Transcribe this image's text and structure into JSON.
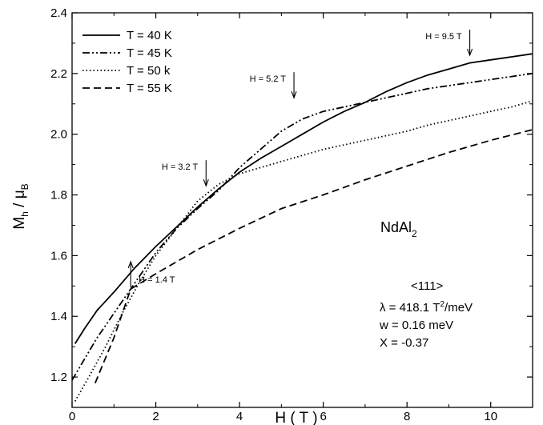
{
  "chart_data": {
    "type": "line",
    "xlabel": "H ( T )",
    "ylabel_main": "M",
    "ylabel_sub1": "h",
    "ylabel_mid": " / μ",
    "ylabel_sub2": "B",
    "xlim": [
      0,
      11
    ],
    "ylim": [
      1.1,
      2.4
    ],
    "x_ticks": [
      0,
      2,
      4,
      6,
      8,
      10
    ],
    "x_tick_labels": [
      "0",
      "2",
      "4",
      "6",
      "8",
      "10"
    ],
    "y_ticks": [
      1.2,
      1.4,
      1.6,
      1.8,
      2.0,
      2.2,
      2.4
    ],
    "y_tick_labels": [
      "1.2",
      "1.4",
      "1.6",
      "1.8",
      "2.0",
      "2.2",
      "2.4"
    ],
    "grid": false,
    "legend_position": "top-left",
    "series": [
      {
        "name": "T = 40 K",
        "dash": "solid",
        "points": [
          [
            0.07,
            1.31
          ],
          [
            0.3,
            1.36
          ],
          [
            0.6,
            1.42
          ],
          [
            1.0,
            1.48
          ],
          [
            1.5,
            1.56
          ],
          [
            2.0,
            1.63
          ],
          [
            2.5,
            1.695
          ],
          [
            3.0,
            1.76
          ],
          [
            3.5,
            1.82
          ],
          [
            4.0,
            1.875
          ],
          [
            4.5,
            1.92
          ],
          [
            5.0,
            1.96
          ],
          [
            5.5,
            2.0
          ],
          [
            6.0,
            2.04
          ],
          [
            6.5,
            2.075
          ],
          [
            7.0,
            2.105
          ],
          [
            7.5,
            2.14
          ],
          [
            8.0,
            2.17
          ],
          [
            8.5,
            2.195
          ],
          [
            9.0,
            2.215
          ],
          [
            9.5,
            2.235
          ],
          [
            10.0,
            2.245
          ],
          [
            10.5,
            2.255
          ],
          [
            11.0,
            2.265
          ]
        ]
      },
      {
        "name": "T = 45 K",
        "dash": "dash-dot",
        "points": [
          [
            0.0,
            1.19
          ],
          [
            0.3,
            1.26
          ],
          [
            0.6,
            1.33
          ],
          [
            1.0,
            1.41
          ],
          [
            1.5,
            1.51
          ],
          [
            2.0,
            1.61
          ],
          [
            2.5,
            1.69
          ],
          [
            3.0,
            1.755
          ],
          [
            3.5,
            1.815
          ],
          [
            4.0,
            1.89
          ],
          [
            4.5,
            1.95
          ],
          [
            5.0,
            2.01
          ],
          [
            5.5,
            2.05
          ],
          [
            6.0,
            2.075
          ],
          [
            6.5,
            2.09
          ],
          [
            7.0,
            2.105
          ],
          [
            7.5,
            2.12
          ],
          [
            8.0,
            2.135
          ],
          [
            8.5,
            2.15
          ],
          [
            9.0,
            2.16
          ],
          [
            9.5,
            2.17
          ],
          [
            10.0,
            2.18
          ],
          [
            10.5,
            2.19
          ],
          [
            11.0,
            2.2
          ]
        ]
      },
      {
        "name": "T = 50 k",
        "dash": "dotted",
        "points": [
          [
            0.07,
            1.12
          ],
          [
            0.4,
            1.2
          ],
          [
            0.8,
            1.3
          ],
          [
            1.2,
            1.41
          ],
          [
            1.6,
            1.51
          ],
          [
            2.0,
            1.6
          ],
          [
            2.5,
            1.69
          ],
          [
            3.0,
            1.78
          ],
          [
            3.5,
            1.835
          ],
          [
            4.0,
            1.87
          ],
          [
            4.5,
            1.89
          ],
          [
            5.0,
            1.91
          ],
          [
            5.5,
            1.93
          ],
          [
            6.0,
            1.95
          ],
          [
            6.5,
            1.965
          ],
          [
            7.0,
            1.98
          ],
          [
            7.5,
            1.995
          ],
          [
            8.0,
            2.01
          ],
          [
            8.5,
            2.03
          ],
          [
            9.0,
            2.045
          ],
          [
            9.5,
            2.06
          ],
          [
            10.0,
            2.075
          ],
          [
            10.5,
            2.09
          ],
          [
            11.0,
            2.11
          ]
        ]
      },
      {
        "name": "T = 55 K",
        "dash": "dashed",
        "points": [
          [
            0.55,
            1.18
          ],
          [
            1.0,
            1.33
          ],
          [
            1.4,
            1.49
          ],
          [
            2.0,
            1.54
          ],
          [
            3.0,
            1.62
          ],
          [
            4.0,
            1.69
          ],
          [
            5.0,
            1.755
          ],
          [
            6.0,
            1.8
          ],
          [
            7.0,
            1.85
          ],
          [
            8.0,
            1.895
          ],
          [
            9.0,
            1.94
          ],
          [
            10.0,
            1.98
          ],
          [
            11.0,
            2.015
          ]
        ]
      }
    ],
    "annotations": [
      {
        "text": "H = 1.4 T",
        "x": 1.4,
        "y": 1.58,
        "arrow": "up",
        "label_side": "right"
      },
      {
        "text": "H = 3.2 T",
        "x": 3.2,
        "y": 1.83,
        "arrow": "down",
        "label_side": "left"
      },
      {
        "text": "H = 5.2 T",
        "x": 5.3,
        "y": 2.12,
        "arrow": "down",
        "label_side": "left"
      },
      {
        "text": "H = 9.5 T",
        "x": 9.5,
        "y": 2.26,
        "arrow": "down",
        "label_side": "left"
      }
    ],
    "material_label_main": "NdAl",
    "material_label_sub": "2",
    "parameters": {
      "direction": "<111>",
      "lambda_prefix": "λ = 418.1  T",
      "lambda_sup": "2",
      "lambda_suffix": "/meV",
      "w": "w = 0.16 meV",
      "X": "X = -0.37"
    }
  }
}
